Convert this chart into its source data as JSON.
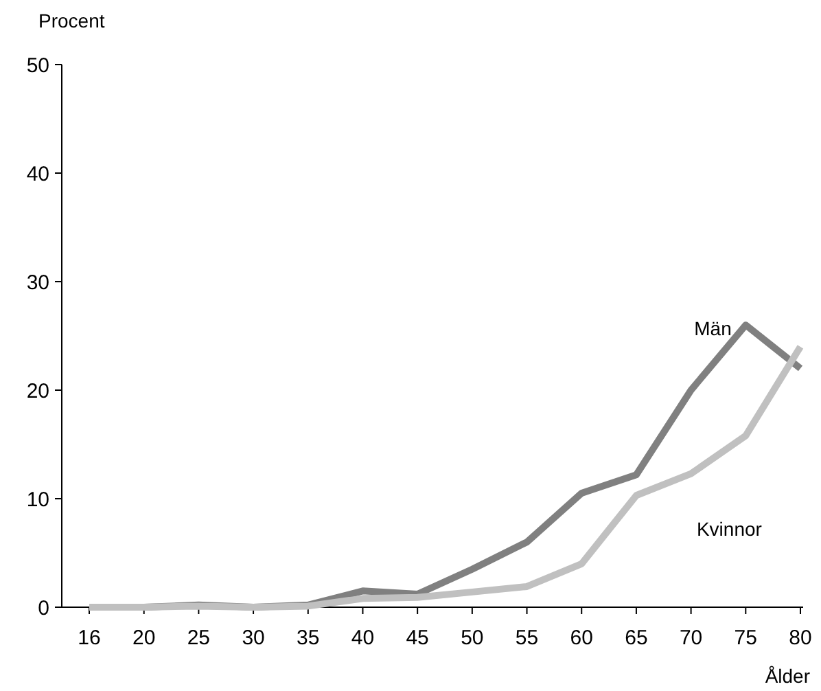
{
  "chart_data": {
    "type": "line",
    "xlabel": "Ålder",
    "ylabel": "Procent",
    "categories": [
      "16",
      "20",
      "25",
      "30",
      "35",
      "40",
      "45",
      "50",
      "55",
      "60",
      "65",
      "70",
      "75",
      "80"
    ],
    "ylim": [
      0,
      50
    ],
    "yticks": [
      0,
      10,
      20,
      30,
      40,
      50
    ],
    "grid": false,
    "marker": "none",
    "line_style": "solid",
    "series": [
      {
        "name": "Män",
        "color": "#808080",
        "values": [
          0,
          0,
          0.2,
          0,
          0.2,
          1.5,
          1.2,
          3.5,
          6,
          10.5,
          12.2,
          20,
          26,
          22
        ]
      },
      {
        "name": "Kvinnor",
        "color": "#c0c0c0",
        "values": [
          0,
          0,
          0.1,
          0,
          0.1,
          0.8,
          0.9,
          1.4,
          1.9,
          4,
          10.3,
          12.3,
          15.8,
          24
        ]
      }
    ]
  }
}
